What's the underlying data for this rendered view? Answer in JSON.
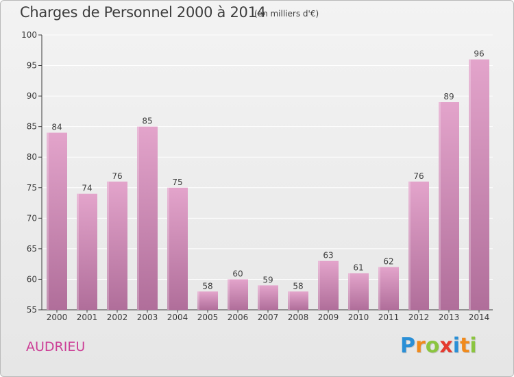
{
  "header": {
    "title": "Charges de Personnel 2000 à 2014",
    "subtitle": "(en milliers d'€)"
  },
  "footer": {
    "commune": "AUDRIEU",
    "logo_letters": [
      "P",
      "r",
      "o",
      "x",
      "i",
      "t",
      "i"
    ],
    "logo_colors": [
      "#2a8fd6",
      "#f08a1c",
      "#8bc53f",
      "#e53a2f",
      "#2a8fd6",
      "#f08a1c",
      "#8bc53f"
    ]
  },
  "colors": {
    "bar_top": "#e3a4cb",
    "bar_bottom": "#b06e9a",
    "grid": "#ffffff",
    "axis": "#3c3c3c",
    "commune": "#cc3e96"
  },
  "chart_data": {
    "type": "bar",
    "categories": [
      "2000",
      "2001",
      "2002",
      "2003",
      "2004",
      "2005",
      "2006",
      "2007",
      "2008",
      "2009",
      "2010",
      "2011",
      "2012",
      "2013",
      "2014"
    ],
    "values": [
      84,
      74,
      76,
      85,
      75,
      58,
      60,
      59,
      58,
      63,
      61,
      62,
      76,
      89,
      96
    ],
    "title": "Charges de Personnel 2000 à 2014",
    "subtitle": "(en milliers d'€)",
    "xlabel": "",
    "ylabel": "",
    "ylim": [
      55,
      100
    ],
    "yticks": [
      55,
      60,
      65,
      70,
      75,
      80,
      85,
      90,
      95,
      100
    ],
    "grid": true,
    "legend": "none"
  }
}
